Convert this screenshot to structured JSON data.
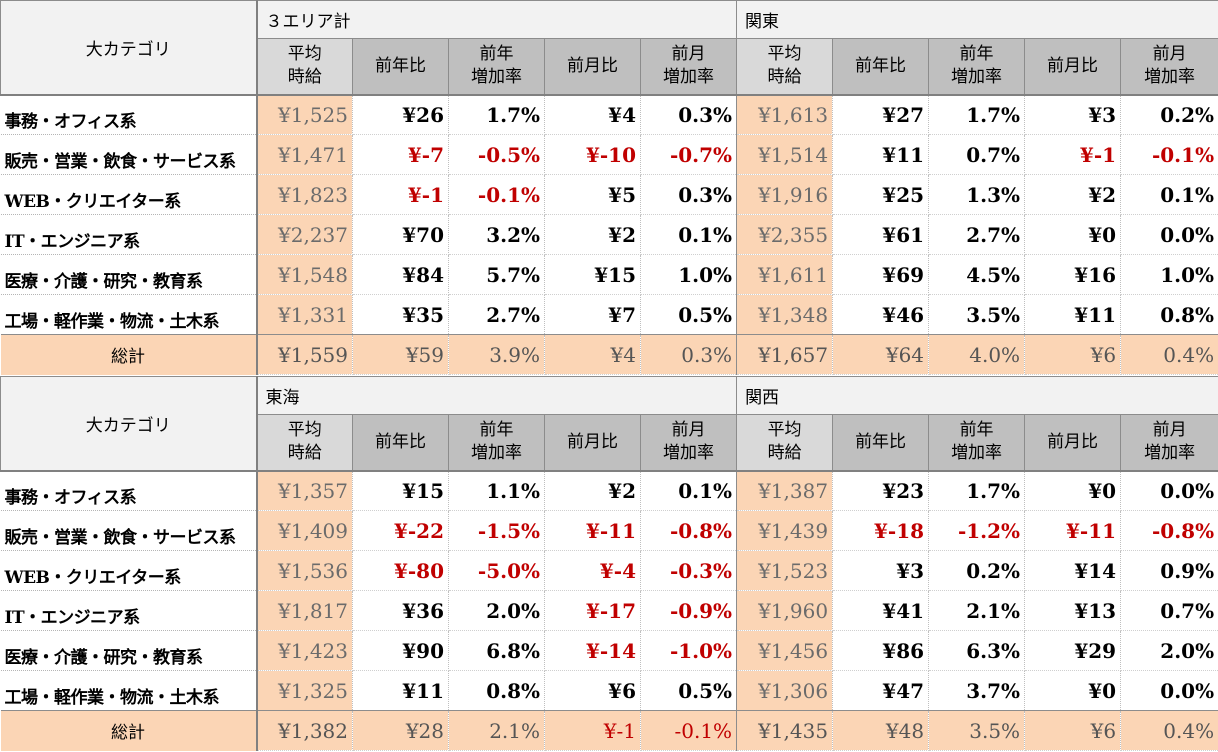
{
  "category_header": "大カテゴリ",
  "col_headers": {
    "avg": "平均\n時給",
    "yoy": "前年比",
    "yoy_rate": "前年\n増加率",
    "mom": "前月比",
    "mom_rate": "前月\n増加率"
  },
  "categories": [
    "事務・オフィス系",
    "販売・営業・飲食・サービス系",
    "WEB・クリエイター系",
    "IT・エンジニア系",
    "医療・介護・研究・教育系",
    "工場・軽作業・物流・土木系"
  ],
  "total_label": "総計",
  "blocks": [
    {
      "regions": [
        {
          "name": "３エリア計",
          "rows": [
            [
              "¥1,525",
              "¥26",
              "1.7%",
              "¥4",
              "0.3%"
            ],
            [
              "¥1,471",
              "¥-7",
              "-0.5%",
              "¥-10",
              "-0.7%"
            ],
            [
              "¥1,823",
              "¥-1",
              "-0.1%",
              "¥5",
              "0.3%"
            ],
            [
              "¥2,237",
              "¥70",
              "3.2%",
              "¥2",
              "0.1%"
            ],
            [
              "¥1,548",
              "¥84",
              "5.7%",
              "¥15",
              "1.0%"
            ],
            [
              "¥1,331",
              "¥35",
              "2.7%",
              "¥7",
              "0.5%"
            ]
          ],
          "total": [
            "¥1,559",
            "¥59",
            "3.9%",
            "¥4",
            "0.3%"
          ]
        },
        {
          "name": "関東",
          "rows": [
            [
              "¥1,613",
              "¥27",
              "1.7%",
              "¥3",
              "0.2%"
            ],
            [
              "¥1,514",
              "¥11",
              "0.7%",
              "¥-1",
              "-0.1%"
            ],
            [
              "¥1,916",
              "¥25",
              "1.3%",
              "¥2",
              "0.1%"
            ],
            [
              "¥2,355",
              "¥61",
              "2.7%",
              "¥0",
              "0.0%"
            ],
            [
              "¥1,611",
              "¥69",
              "4.5%",
              "¥16",
              "1.0%"
            ],
            [
              "¥1,348",
              "¥46",
              "3.5%",
              "¥11",
              "0.8%"
            ]
          ],
          "total": [
            "¥1,657",
            "¥64",
            "4.0%",
            "¥6",
            "0.4%"
          ]
        }
      ]
    },
    {
      "regions": [
        {
          "name": "東海",
          "rows": [
            [
              "¥1,357",
              "¥15",
              "1.1%",
              "¥2",
              "0.1%"
            ],
            [
              "¥1,409",
              "¥-22",
              "-1.5%",
              "¥-11",
              "-0.8%"
            ],
            [
              "¥1,536",
              "¥-80",
              "-5.0%",
              "¥-4",
              "-0.3%"
            ],
            [
              "¥1,817",
              "¥36",
              "2.0%",
              "¥-17",
              "-0.9%"
            ],
            [
              "¥1,423",
              "¥90",
              "6.8%",
              "¥-14",
              "-1.0%"
            ],
            [
              "¥1,325",
              "¥11",
              "0.8%",
              "¥6",
              "0.5%"
            ]
          ],
          "total": [
            "¥1,382",
            "¥28",
            "2.1%",
            "¥-1",
            "-0.1%"
          ]
        },
        {
          "name": "関西",
          "rows": [
            [
              "¥1,387",
              "¥23",
              "1.7%",
              "¥0",
              "0.0%"
            ],
            [
              "¥1,439",
              "¥-18",
              "-1.2%",
              "¥-11",
              "-0.8%"
            ],
            [
              "¥1,523",
              "¥3",
              "0.2%",
              "¥14",
              "0.9%"
            ],
            [
              "¥1,960",
              "¥41",
              "2.1%",
              "¥13",
              "0.7%"
            ],
            [
              "¥1,456",
              "¥86",
              "6.3%",
              "¥29",
              "2.0%"
            ],
            [
              "¥1,306",
              "¥47",
              "3.7%",
              "¥0",
              "0.0%"
            ]
          ],
          "total": [
            "¥1,435",
            "¥48",
            "3.5%",
            "¥6",
            "0.4%"
          ]
        }
      ]
    }
  ],
  "colors": {
    "avg_fill": "#fbd5b5",
    "header_fill": "#bfbfbf",
    "negative": "#c00000"
  }
}
